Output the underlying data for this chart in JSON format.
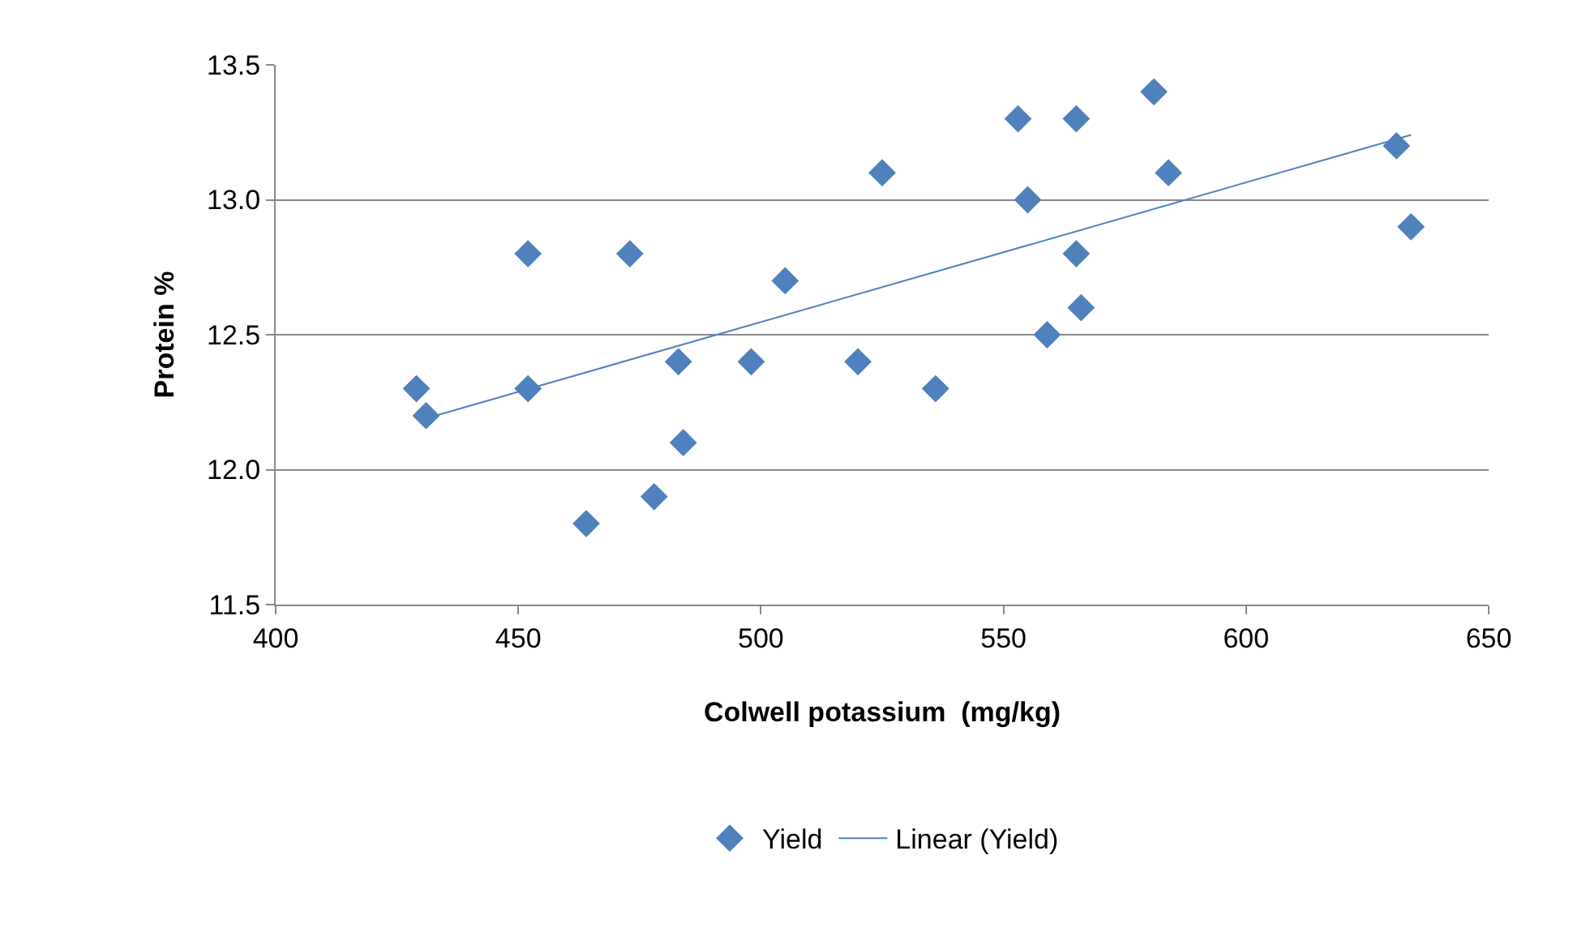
{
  "chart_data": {
    "type": "scatter",
    "xlabel": "Colwell potassium  (mg/kg)",
    "ylabel": "Protein %",
    "xlim": [
      400,
      650
    ],
    "xticks": [
      400,
      450,
      500,
      550,
      600,
      650
    ],
    "ylim": [
      11.5,
      13.5
    ],
    "yticks": [
      {
        "value": 11.5,
        "label": "11.5"
      },
      {
        "value": 12,
        "label": "12.0"
      },
      {
        "value": 12.5,
        "label": "12.5"
      },
      {
        "value": 13,
        "label": "13.0"
      },
      {
        "value": 13.5,
        "label": "13.5"
      }
    ],
    "grid": "y",
    "legend": "bottom",
    "series": [
      {
        "name": "Yield",
        "marker": "diamond",
        "color": "#4f81bd",
        "x": [
          429,
          431,
          452,
          452,
          473,
          464,
          478,
          483,
          484,
          498,
          505,
          520,
          525,
          536,
          553,
          555,
          559,
          565,
          565,
          566,
          581,
          584,
          631,
          634
        ],
        "values": [
          12.3,
          12.2,
          12.3,
          12.8,
          12.8,
          11.8,
          11.9,
          12.4,
          12.1,
          12.4,
          12.7,
          12.4,
          13.1,
          12.3,
          13.3,
          13.0,
          12.5,
          13.3,
          12.8,
          12.6,
          13.4,
          13.1,
          13.2,
          12.9
        ]
      },
      {
        "name": "Linear (Yield)",
        "type": "line",
        "marker": "none",
        "color": "#4f81bd",
        "line_style": "solid",
        "x": [
          431,
          634
        ],
        "values": [
          12.19,
          13.24
        ]
      }
    ]
  }
}
